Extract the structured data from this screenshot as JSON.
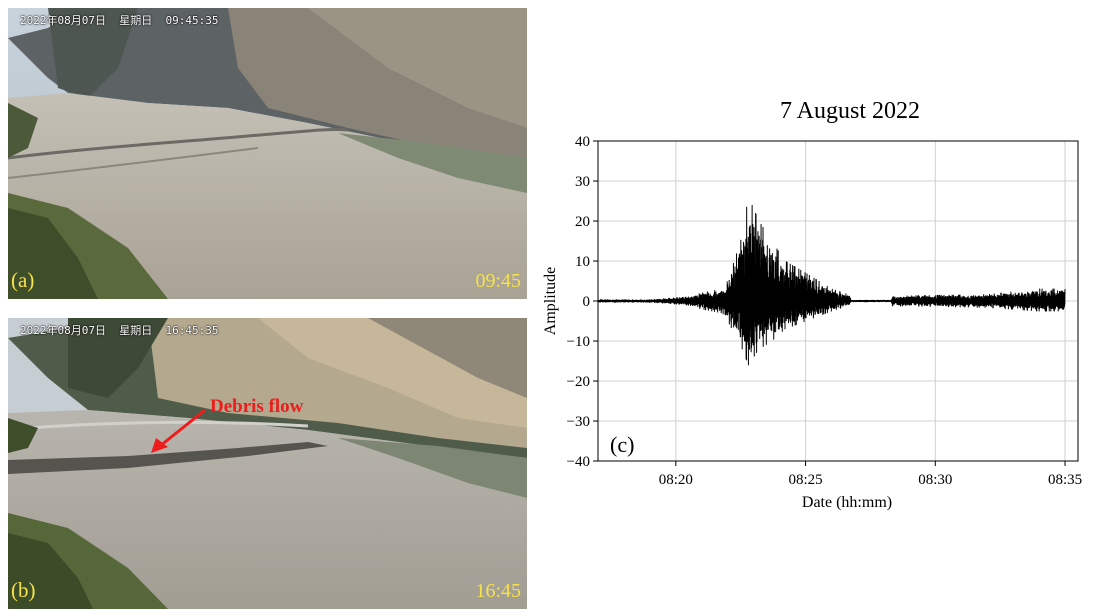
{
  "photos": [
    {
      "timestamp": "2022年08月07日  星期日  09:45:35",
      "panel": "(a)",
      "time_label": "09:45"
    },
    {
      "timestamp": "2022年08月07日  星期日  16:45:35",
      "panel": "(b)",
      "time_label": "16:45",
      "annotation": "Debris flow"
    }
  ],
  "colors": {
    "label_yellow": "#f6e24a",
    "annotation_red": "#ee1c1c",
    "trace": "#000000"
  },
  "chart_data": {
    "type": "line",
    "title": "7 August 2022",
    "xlabel": "Date (hh:mm)",
    "ylabel": "Amplitude",
    "panel_label": "(c)",
    "x_unit": "minutes after 08:00",
    "xlim": [
      17.0,
      35.5
    ],
    "ylim": [
      -40,
      40
    ],
    "yticks": [
      40,
      30,
      20,
      10,
      0,
      -10,
      -20,
      -30,
      -40
    ],
    "ytick_labels": [
      "40",
      "30",
      "20",
      "10",
      "0",
      "−10",
      "−20",
      "−30",
      "−40"
    ],
    "xticks": [
      20,
      25,
      30,
      35
    ],
    "xtick_labels": [
      "08:20",
      "08:25",
      "08:30",
      "08:35"
    ],
    "grid": true,
    "series": [
      {
        "envelope": [
          {
            "x": 17.0,
            "max": 0.3,
            "min": -0.3
          },
          {
            "x": 19.0,
            "max": 0.3,
            "min": -0.3
          },
          {
            "x": 20.5,
            "max": 1.0,
            "min": -1.0
          },
          {
            "x": 21.0,
            "max": 2.0,
            "min": -2.0
          },
          {
            "x": 21.8,
            "max": 3.0,
            "min": -3.0
          },
          {
            "x": 22.0,
            "max": 5.0,
            "min": -5.0
          },
          {
            "x": 22.5,
            "max": 15.0,
            "min": -11.0
          },
          {
            "x": 22.8,
            "max": 26.0,
            "min": -16.0
          },
          {
            "x": 23.2,
            "max": 20.0,
            "min": -12.0
          },
          {
            "x": 23.7,
            "max": 15.0,
            "min": -10.0
          },
          {
            "x": 24.2,
            "max": 10.0,
            "min": -7.0
          },
          {
            "x": 25.0,
            "max": 7.0,
            "min": -5.0
          },
          {
            "x": 26.0,
            "max": 3.0,
            "min": -2.5
          },
          {
            "x": 26.7,
            "max": 1.5,
            "min": -1.0
          },
          {
            "x": 26.75,
            "max": 0.2,
            "min": -0.2
          },
          {
            "x": 28.3,
            "max": 0.2,
            "min": -0.2
          },
          {
            "x": 28.35,
            "max": 1.2,
            "min": -1.2
          },
          {
            "x": 32.0,
            "max": 1.6,
            "min": -1.6
          },
          {
            "x": 34.0,
            "max": 3.0,
            "min": -2.5
          },
          {
            "x": 35.0,
            "max": 3.0,
            "min": -2.5
          }
        ]
      }
    ]
  }
}
